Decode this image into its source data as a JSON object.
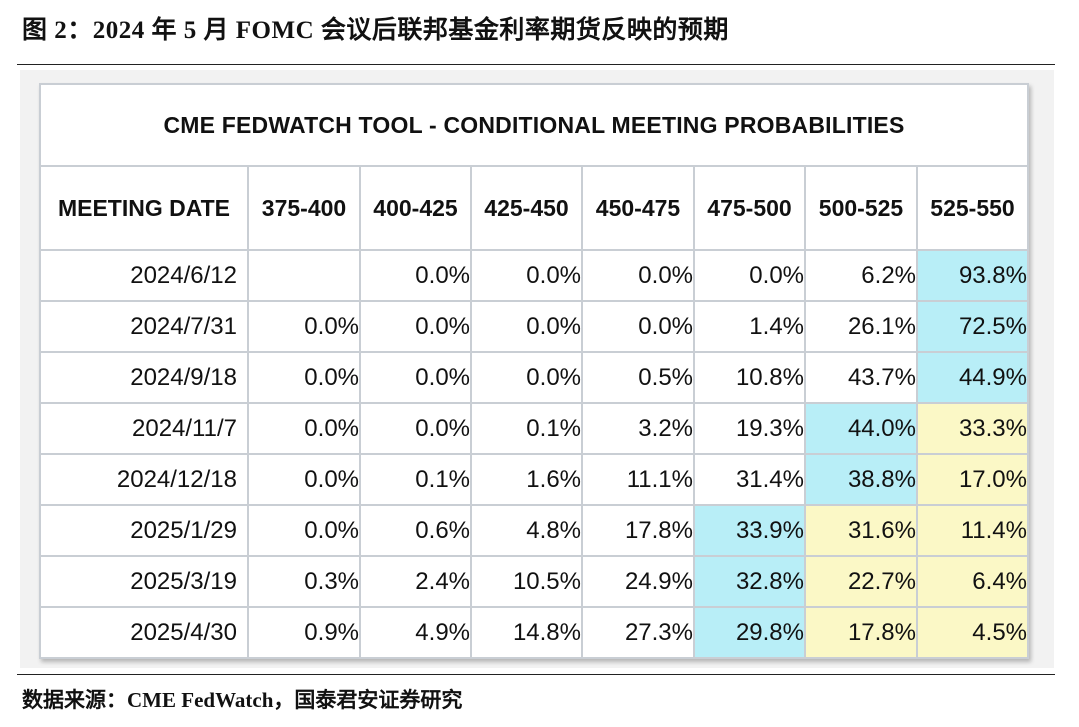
{
  "figure_title": "图 2：2024 年 5 月 FOMC 会议后联邦基金利率期货反映的预期",
  "table": {
    "title": "CME FEDWATCH TOOL - CONDITIONAL MEETING PROBABILITIES",
    "headers": [
      "MEETING DATE",
      "375-400",
      "400-425",
      "425-450",
      "450-475",
      "475-500",
      "500-525",
      "525-550"
    ],
    "rows": [
      {
        "date": "2024/6/12",
        "values": [
          "",
          "0.0%",
          "0.0%",
          "0.0%",
          "0.0%",
          "6.2%",
          "93.8%"
        ]
      },
      {
        "date": "2024/7/31",
        "values": [
          "0.0%",
          "0.0%",
          "0.0%",
          "0.0%",
          "1.4%",
          "26.1%",
          "72.5%"
        ]
      },
      {
        "date": "2024/9/18",
        "values": [
          "0.0%",
          "0.0%",
          "0.0%",
          "0.5%",
          "10.8%",
          "43.7%",
          "44.9%"
        ]
      },
      {
        "date": "2024/11/7",
        "values": [
          "0.0%",
          "0.0%",
          "0.1%",
          "3.2%",
          "19.3%",
          "44.0%",
          "33.3%"
        ]
      },
      {
        "date": "2024/12/18",
        "values": [
          "0.0%",
          "0.1%",
          "1.6%",
          "11.1%",
          "31.4%",
          "38.8%",
          "17.0%"
        ]
      },
      {
        "date": "2025/1/29",
        "values": [
          "0.0%",
          "0.6%",
          "4.8%",
          "17.8%",
          "33.9%",
          "31.6%",
          "11.4%"
        ]
      },
      {
        "date": "2025/3/19",
        "values": [
          "0.3%",
          "2.4%",
          "10.5%",
          "24.9%",
          "32.8%",
          "22.7%",
          "6.4%"
        ]
      },
      {
        "date": "2025/4/30",
        "values": [
          "0.9%",
          "4.9%",
          "14.8%",
          "27.3%",
          "29.8%",
          "17.8%",
          "4.5%"
        ]
      }
    ],
    "highlight_colors": {
      "max": "#b8eef7",
      "secondary": "#fbf8c6"
    }
  },
  "source": "数据来源：CME FedWatch，国泰君安证券研究"
}
